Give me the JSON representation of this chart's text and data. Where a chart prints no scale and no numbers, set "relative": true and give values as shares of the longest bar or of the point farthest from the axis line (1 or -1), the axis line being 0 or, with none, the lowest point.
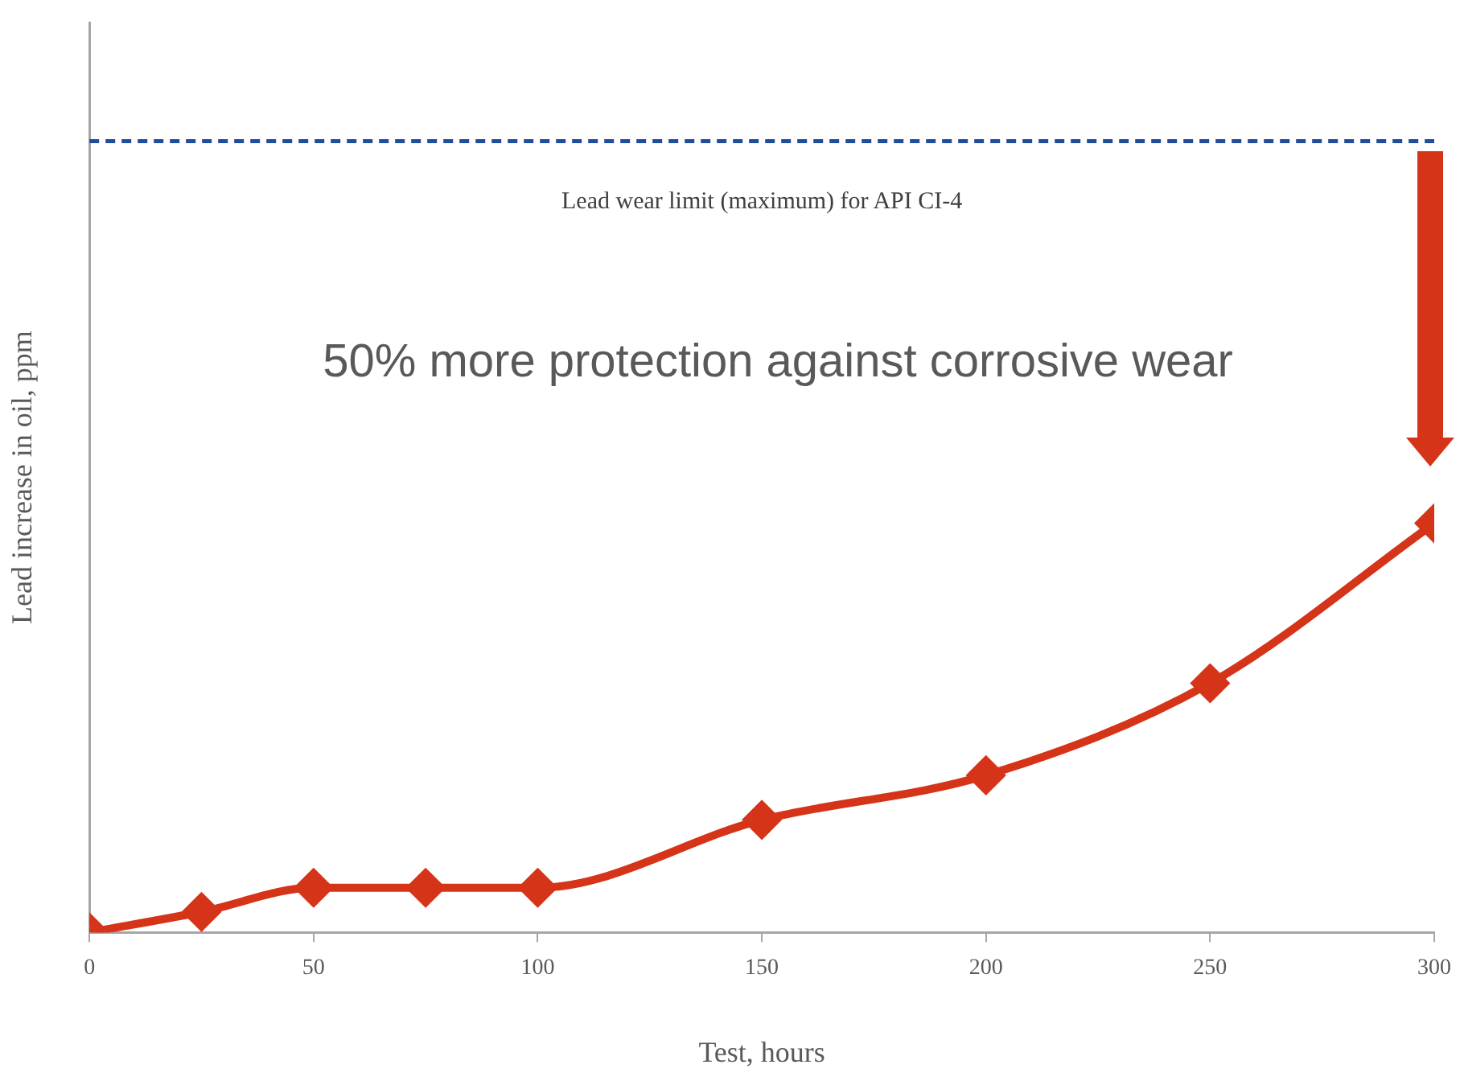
{
  "chart_data": {
    "type": "line",
    "relative": true,
    "xlabel": "Test, hours",
    "ylabel": "Lead increase in oil, ppm",
    "x": [
      0,
      25,
      50,
      75,
      100,
      150,
      200,
      250,
      300
    ],
    "series": [
      {
        "color": "#d63418",
        "values": [
          0,
          0.05,
          0.109,
          0.109,
          0.109,
          0.275,
          0.384,
          0.609,
          1
        ]
      }
    ],
    "xlim": [
      0,
      300
    ],
    "xticks": [
      0,
      50,
      100,
      150,
      200,
      250,
      300
    ],
    "ref_lines": [
      {
        "axis": "y",
        "value": 1.934,
        "label": "Lead wear limit (maximum) for API CI-4",
        "color": "#1f4e9c",
        "line_style": "dashed"
      }
    ],
    "annotations": [
      "50% more protection against corrosive wear"
    ],
    "marker": "diamond",
    "grid": false,
    "legend": false
  }
}
